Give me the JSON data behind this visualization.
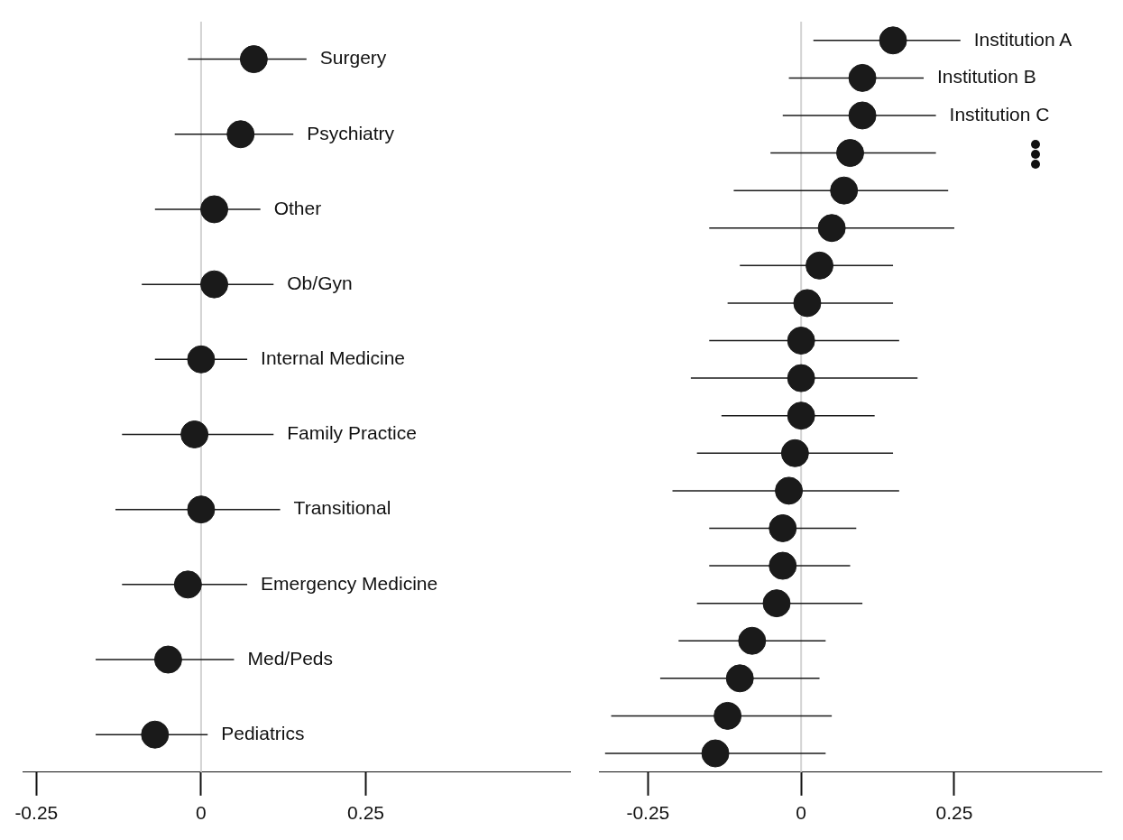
{
  "chart_data": [
    {
      "type": "scatter",
      "orientation": "horizontal",
      "categories": [
        "Surgery",
        "Psychiatry",
        "Other",
        "Ob/Gyn",
        "Internal Medicine",
        "Family Practice",
        "Transitional",
        "Emergency Medicine",
        "Med/Peds",
        "Pediatrics"
      ],
      "series": [
        {
          "color": "#1a1a1a",
          "values": [
            0.08,
            0.06,
            0.02,
            0.02,
            0.0,
            -0.01,
            0.0,
            -0.02,
            -0.05,
            -0.07
          ],
          "errors": [
            [
              -0.02,
              0.16
            ],
            [
              -0.04,
              0.14
            ],
            [
              -0.07,
              0.09
            ],
            [
              -0.09,
              0.11
            ],
            [
              -0.07,
              0.07
            ],
            [
              -0.12,
              0.11
            ],
            [
              -0.13,
              0.12
            ],
            [
              -0.12,
              0.07
            ],
            [
              -0.16,
              0.05
            ],
            [
              -0.16,
              0.01
            ]
          ]
        }
      ],
      "xlim": [
        -0.27,
        0.56
      ],
      "xticks": [
        -0.25,
        0,
        0.25
      ],
      "grid": false,
      "marker": "circle",
      "tick_labels": "x",
      "ref_lines": [
        {
          "axis": "x",
          "value": 0,
          "color": "#d3d3d3"
        }
      ]
    },
    {
      "type": "scatter",
      "orientation": "horizontal",
      "categories": [
        "Institution A",
        "Institution B",
        "Institution C",
        null,
        null,
        null,
        null,
        null,
        null,
        null,
        null,
        null,
        null,
        null,
        null,
        null,
        null,
        null,
        null,
        null
      ],
      "series": [
        {
          "color": "#1a1a1a",
          "values": [
            0.15,
            0.1,
            0.1,
            0.08,
            0.07,
            0.05,
            0.03,
            0.01,
            0.0,
            0.0,
            0.0,
            -0.01,
            -0.02,
            -0.03,
            -0.03,
            -0.04,
            -0.08,
            -0.1,
            -0.12,
            -0.14
          ],
          "errors": [
            [
              0.02,
              0.26
            ],
            [
              -0.02,
              0.2
            ],
            [
              -0.03,
              0.22
            ],
            [
              -0.05,
              0.22
            ],
            [
              -0.11,
              0.24
            ],
            [
              -0.15,
              0.25
            ],
            [
              -0.1,
              0.15
            ],
            [
              -0.12,
              0.15
            ],
            [
              -0.15,
              0.16
            ],
            [
              -0.18,
              0.19
            ],
            [
              -0.13,
              0.12
            ],
            [
              -0.17,
              0.15
            ],
            [
              -0.21,
              0.16
            ],
            [
              -0.15,
              0.09
            ],
            [
              -0.15,
              0.08
            ],
            [
              -0.17,
              0.1
            ],
            [
              -0.2,
              0.04
            ],
            [
              -0.23,
              0.03
            ],
            [
              -0.31,
              0.05
            ],
            [
              -0.32,
              0.04
            ]
          ]
        }
      ],
      "xlim": [
        -0.33,
        0.49
      ],
      "xticks": [
        -0.25,
        0,
        0.25
      ],
      "grid": false,
      "marker": "circle",
      "tick_labels": "x",
      "ref_lines": [
        {
          "axis": "x",
          "value": 0,
          "color": "#d3d3d3"
        }
      ]
    }
  ]
}
